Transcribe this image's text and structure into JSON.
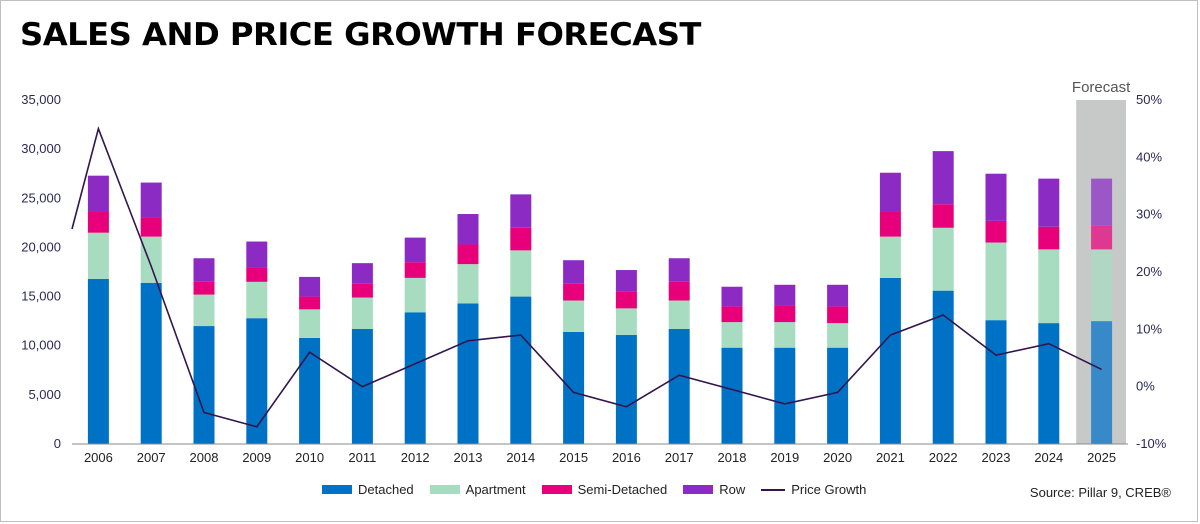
{
  "title": "SALES AND PRICE GROWTH FORECAST",
  "forecast_label": "Forecast",
  "source": "Source: Pillar 9, CREB®",
  "chart_data": {
    "type": "bar",
    "stacked": true,
    "categories": [
      "2006",
      "2007",
      "2008",
      "2009",
      "2010",
      "2011",
      "2012",
      "2013",
      "2014",
      "2015",
      "2016",
      "2017",
      "2018",
      "2019",
      "2020",
      "2021",
      "2022",
      "2023",
      "2024",
      "2025"
    ],
    "series": [
      {
        "name": "Detached",
        "color": "#0072c6",
        "values": [
          16800,
          16400,
          12000,
          12800,
          10800,
          11700,
          13400,
          14300,
          15000,
          11400,
          11100,
          11700,
          9800,
          9800,
          9800,
          16900,
          15600,
          12600,
          12300,
          12500
        ]
      },
      {
        "name": "Apartment",
        "color": "#a8dcc0",
        "values": [
          4700,
          4700,
          3200,
          3700,
          2900,
          3200,
          3500,
          4000,
          4700,
          3200,
          2700,
          2900,
          2600,
          2600,
          2500,
          4200,
          6400,
          7900,
          7500,
          7300
        ]
      },
      {
        "name": "Semi-Detached",
        "color": "#e8007a",
        "values": [
          2200,
          1900,
          1300,
          1500,
          1300,
          1400,
          1600,
          2000,
          2300,
          1700,
          1700,
          1900,
          1600,
          1700,
          1700,
          2600,
          2400,
          2200,
          2300,
          2400
        ]
      },
      {
        "name": "Row",
        "color": "#8b2bc4",
        "values": [
          3600,
          3600,
          2400,
          2600,
          2000,
          2100,
          2500,
          3100,
          3400,
          2400,
          2200,
          2400,
          2000,
          2100,
          2200,
          3900,
          5400,
          4800,
          4900,
          4800
        ]
      }
    ],
    "line": {
      "name": "Price Growth",
      "color": "#33154d",
      "values": [
        45,
        21,
        -4.5,
        -7,
        6,
        0,
        4,
        8,
        9,
        -1,
        -3.5,
        2,
        -0.5,
        -3,
        -1,
        9,
        12.5,
        5.5,
        7.5,
        3
      ]
    },
    "line_start_value": 27.5,
    "forecast_categories": [
      "2025"
    ],
    "y_left": {
      "min": 0,
      "max": 35000,
      "ticks": [
        "0",
        "5,000",
        "10,000",
        "15,000",
        "20,000",
        "25,000",
        "30,000",
        "35,000"
      ]
    },
    "y_right": {
      "min": -10,
      "max": 50,
      "ticks": [
        "-10%",
        "0%",
        "10%",
        "20%",
        "30%",
        "40%",
        "50%"
      ]
    },
    "grid": false,
    "legend": "bottom"
  }
}
